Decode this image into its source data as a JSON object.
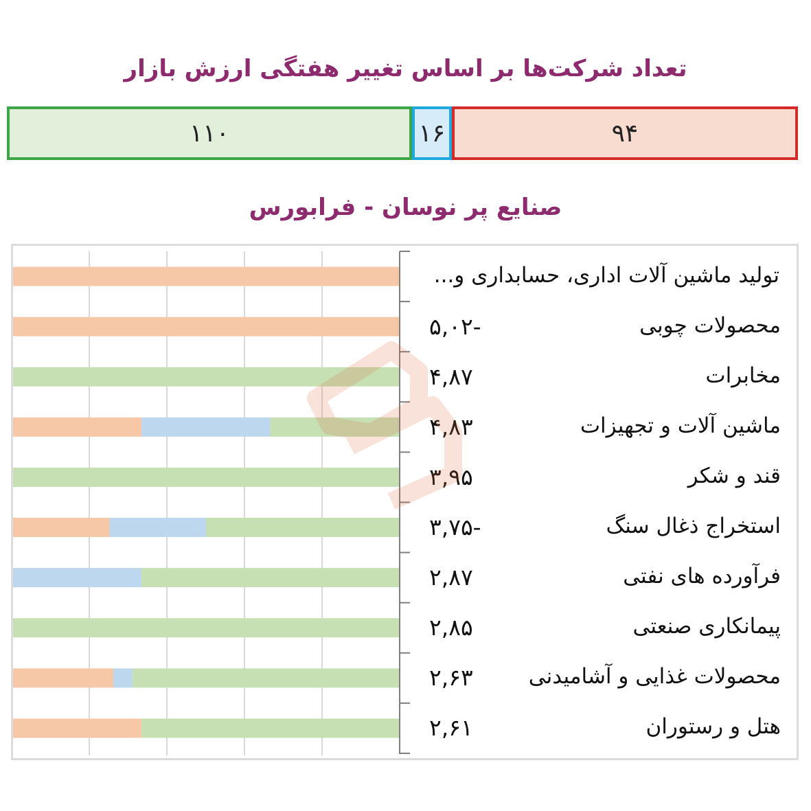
{
  "header": {
    "title": "تعداد شرکت‌ها بر اساس تغییر هفتگی ارزش بازار"
  },
  "summary": {
    "segments": [
      {
        "key": "positive",
        "value": 110,
        "label": "۱۱۰",
        "color": "#e2efda",
        "border": "#3fa647"
      },
      {
        "key": "neutral",
        "value": 16,
        "label": "۱۶",
        "color": "#d6ecf8",
        "border": "#1fa7e0"
      },
      {
        "key": "negative",
        "value": 94,
        "label": "۹۴",
        "color": "#f7dccf",
        "border": "#d42a2a"
      }
    ]
  },
  "chart_title": "صنایع پر نوسان - فرابورس",
  "colors": {
    "negative": "#f7c8a8",
    "neutral": "#bdd7ee",
    "positive": "#c6e0b4",
    "grid": "#d9d9d9",
    "axis": "#7f7f7f"
  },
  "chart_data": {
    "type": "bar",
    "orientation": "horizontal-stacked-100",
    "title": "صنایع پر نوسان - فرابورس",
    "series_keys": [
      "negative",
      "neutral",
      "positive"
    ],
    "categories": [
      {
        "name": "تولید ماشین آلات اداری، حسابداری و...",
        "value_label": "",
        "negative": 100,
        "neutral": 0,
        "positive": 0
      },
      {
        "name": "محصولات چوبی",
        "value_label": "۵,۰۲",
        "negative_sign": true,
        "negative": 100,
        "neutral": 0,
        "positive": 0
      },
      {
        "name": "مخابرات",
        "value_label": "۴,۸۷",
        "negative_sign": false,
        "negative": 0,
        "neutral": 0,
        "positive": 100
      },
      {
        "name": "ماشین آلات و تجهیزات",
        "value_label": "۴,۸۳",
        "negative_sign": false,
        "negative": 33.3,
        "neutral": 33.3,
        "positive": 33.4
      },
      {
        "name": "قند و شکر",
        "value_label": "۳,۹۵",
        "negative_sign": false,
        "negative": 0,
        "neutral": 0,
        "positive": 100
      },
      {
        "name": "استخراج ذغال سنگ",
        "value_label": "۳,۷۵",
        "negative_sign": true,
        "negative": 25,
        "neutral": 25,
        "positive": 50
      },
      {
        "name": "فرآورده های نفتی",
        "value_label": "۲,۸۷",
        "negative_sign": false,
        "negative": 0,
        "neutral": 33.3,
        "positive": 66.7
      },
      {
        "name": "پیمانکاری صنعتی",
        "value_label": "۲,۸۵",
        "negative_sign": false,
        "negative": 0,
        "neutral": 0,
        "positive": 100
      },
      {
        "name": "محصولات غذایی و آشامیدنی",
        "value_label": "۲,۶۳",
        "negative_sign": false,
        "negative": 26,
        "neutral": 5,
        "positive": 69
      },
      {
        "name": "هتل و رستوران",
        "value_label": "۲,۶۱",
        "negative_sign": false,
        "negative": 33.3,
        "neutral": 0,
        "positive": 66.7
      }
    ],
    "xlim": [
      0,
      100
    ],
    "grid": true
  }
}
